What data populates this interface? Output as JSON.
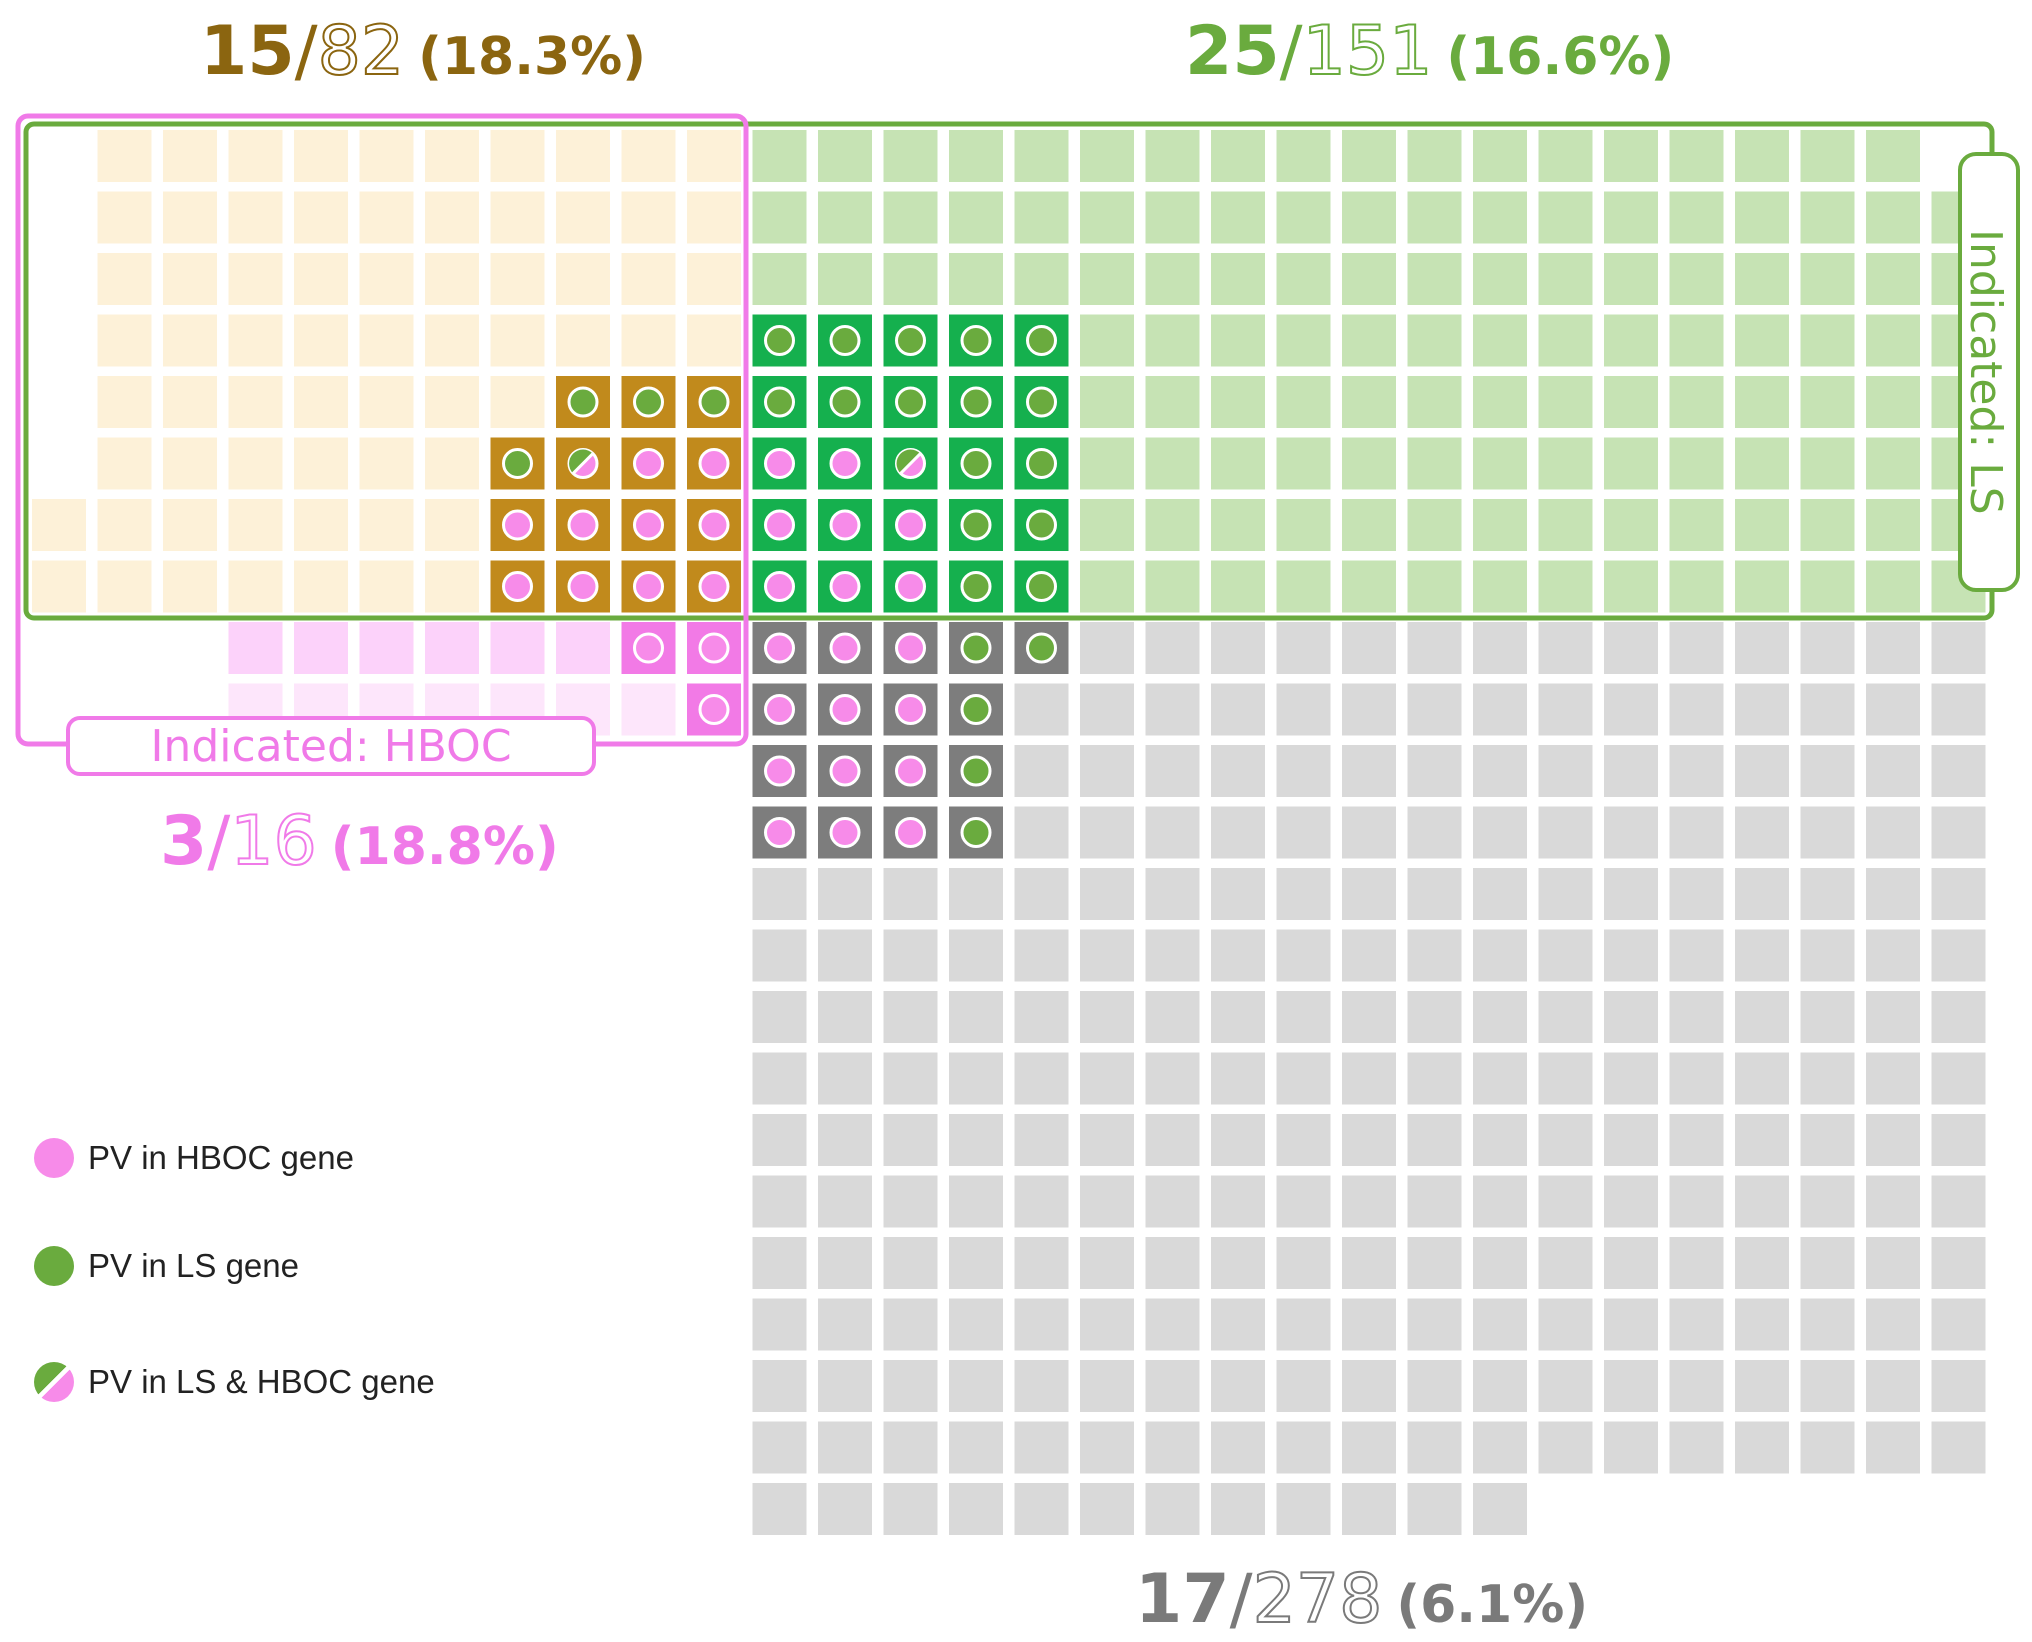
{
  "groups": {
    "hboc_ls": {
      "num": "15",
      "den": "82",
      "pct": "(18.3%)",
      "color": "#8b6510",
      "fill": "#fdf1d8",
      "pv_fill": "#c18a1c"
    },
    "ls_only": {
      "num": "25",
      "den": "151",
      "pct": "(16.6%)",
      "color": "#6aab3e",
      "fill": "#c6e3b4",
      "pv_fill": "#15b04e"
    },
    "hboc_only": {
      "num": "3",
      "den": "16",
      "pct": "(18.8%)",
      "color": "#f07ae8",
      "fill": "#fcd2fa",
      "pv_fill": "#f27ae6"
    },
    "neither": {
      "num": "17",
      "den": "278",
      "pct": "(6.1%)",
      "color": "#7a7a7a",
      "fill": "#d9d9d9",
      "pv_fill": "#7d7d7d"
    }
  },
  "labels": {
    "indicated_ls": "Indicated: LS",
    "indicated_hboc": "Indicated: HBOC"
  },
  "legend": [
    {
      "label": "PV in HBOC gene",
      "icon": "pink-dot-icon"
    },
    {
      "label": "PV in LS gene",
      "icon": "green-dot-icon"
    },
    {
      "label": "PV in LS & HBOC gene",
      "icon": "split-dot-icon"
    }
  ],
  "colors": {
    "pv_hboc": "#f78be9",
    "pv_ls": "#6aab3e",
    "box_ls": "#6aab3e",
    "box_hboc": "#f07ae8"
  }
}
